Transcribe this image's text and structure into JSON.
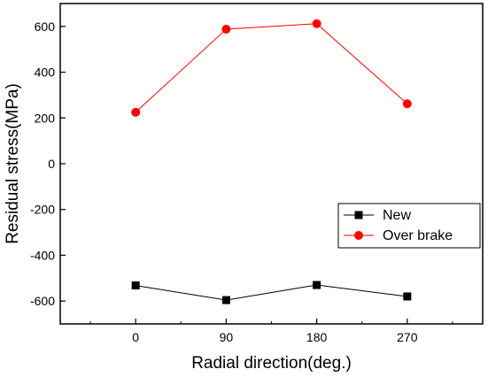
{
  "chart_data": {
    "type": "line",
    "title": "",
    "xlabel": "Radial direction(deg.)",
    "ylabel": "Residual stress(MPa)",
    "x_ticks": [
      "0",
      "90",
      "180",
      "270"
    ],
    "y_ticks": [
      "600",
      "400",
      "200",
      "0",
      "-200",
      "-400",
      "-600"
    ],
    "xlim": [
      -75,
      345
    ],
    "ylim": [
      -700,
      700
    ],
    "grid": false,
    "legend_position": "lower-right",
    "series": [
      {
        "name": "New",
        "color": "#000000",
        "marker": "square",
        "x": [
          0,
          90,
          180,
          270
        ],
        "values": [
          -532,
          -596,
          -530,
          -580
        ]
      },
      {
        "name": "Over brake",
        "color": "#ff0000",
        "marker": "circle",
        "x": [
          0,
          90,
          180,
          270
        ],
        "values": [
          225,
          588,
          612,
          262
        ]
      }
    ]
  }
}
